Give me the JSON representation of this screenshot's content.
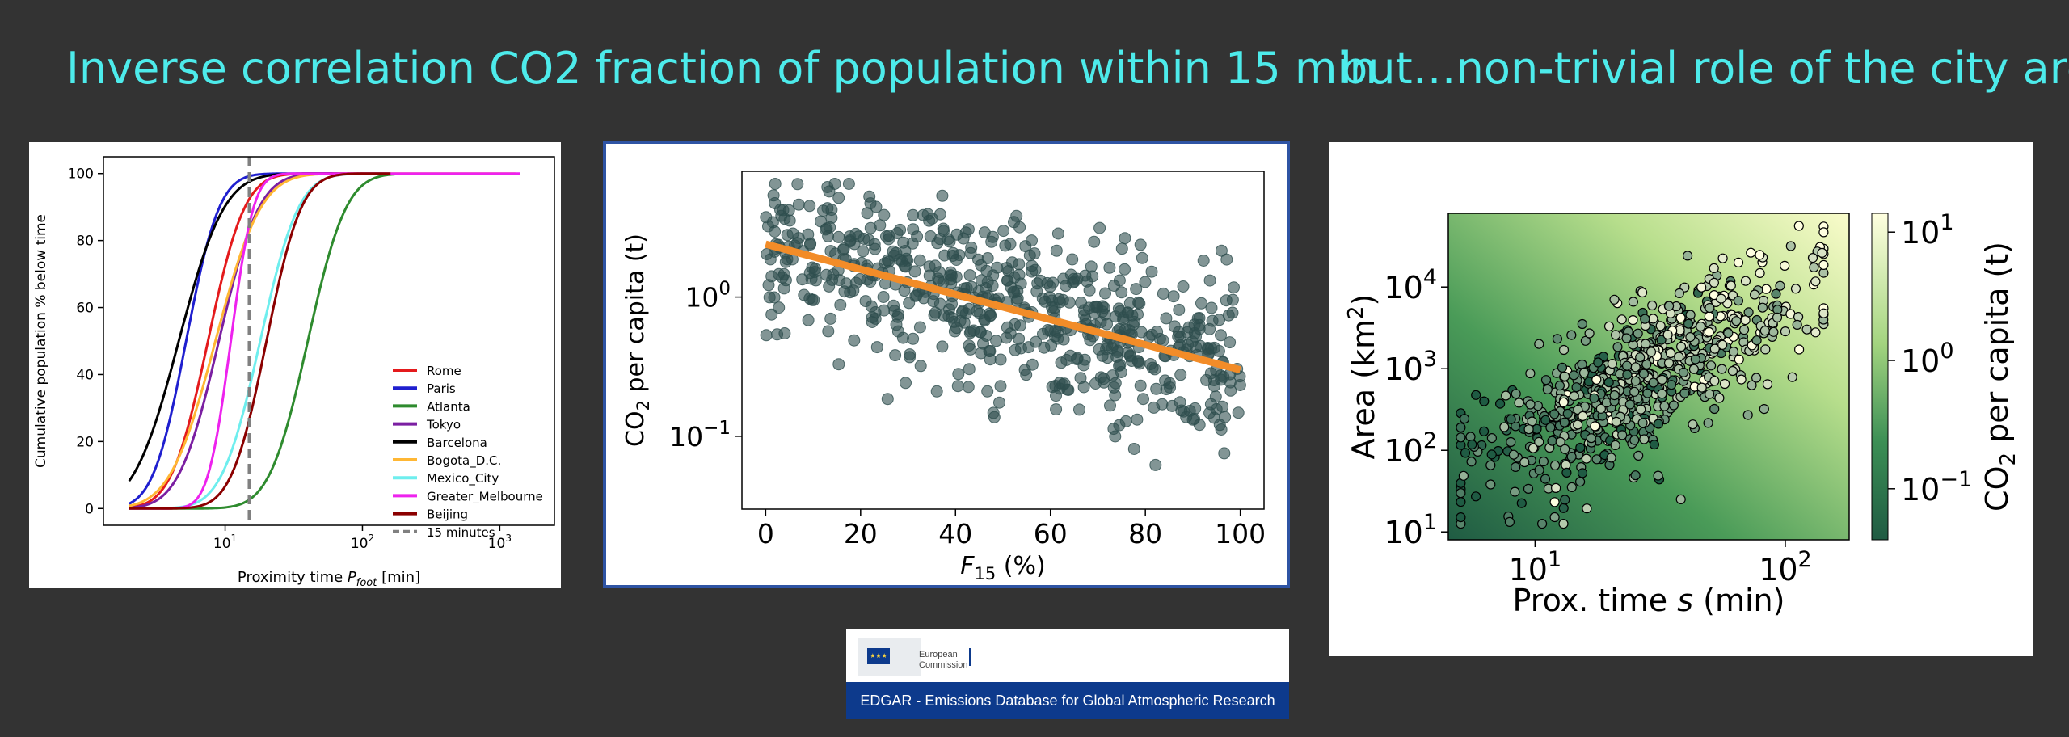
{
  "slide": {
    "title_left": "Inverse correlation CO2 fraction of population within 15 min",
    "title_right": "but…non-trivial role of the city areas!",
    "title_color": "#4DEBEB",
    "background": "#333333"
  },
  "source": {
    "org_line1": "European",
    "org_line2": "Commission",
    "caption": "EDGAR - Emissions Database for Global Atmospheric Research",
    "brand_color": "#0D3A8C"
  },
  "chart_data": [
    {
      "type": "line",
      "xlabel": "Proximity time P_foot [min]",
      "xlabel_parts": {
        "main": "Proximity time ",
        "var": "P",
        "sub": "foot",
        "unit": " [min]"
      },
      "ylabel": "Cumulative population % below time",
      "x_scale": "log",
      "xlim": [
        1.3,
        2500
      ],
      "ylim": [
        -5,
        105
      ],
      "x_ticks": [
        {
          "base": "10",
          "exp": "1",
          "value": 10
        },
        {
          "base": "10",
          "exp": "2",
          "value": 100
        },
        {
          "base": "10",
          "exp": "3",
          "value": 1000
        }
      ],
      "y_ticks": [
        "0",
        "20",
        "40",
        "60",
        "80",
        "100"
      ],
      "grid": false,
      "legend_position": "lower-right",
      "threshold": {
        "name": "15 minutes",
        "x": 15,
        "color": "#808080"
      },
      "series": [
        {
          "name": "Rome",
          "color": "#E41A1C",
          "t50": 7.5,
          "w": 0.21,
          "max_x": 150
        },
        {
          "name": "Paris",
          "color": "#1F1FCF",
          "t50": 5.2,
          "w": 0.19,
          "max_x": 60
        },
        {
          "name": "Atlanta",
          "color": "#2E8B2E",
          "t50": 40,
          "w": 0.22,
          "max_x": 200
        },
        {
          "name": "Tokyo",
          "color": "#7B1FA2",
          "t50": 9,
          "w": 0.23,
          "max_x": 140
        },
        {
          "name": "Barcelona",
          "color": "#000000",
          "t50": 4.6,
          "w": 0.26,
          "max_x": 100
        },
        {
          "name": "Bogota_D.C.",
          "color": "#FFB734",
          "t50": 8.5,
          "w": 0.26,
          "max_x": 1300
        },
        {
          "name": "Mexico_City",
          "color": "#6EEEEE",
          "t50": 18,
          "w": 0.22,
          "max_x": 160
        },
        {
          "name": "Greater_Melbourne",
          "color": "#EE22EE",
          "t50": 11,
          "w": 0.13,
          "max_x": 1400
        },
        {
          "name": "Beijing",
          "color": "#8B0000",
          "t50": 20,
          "w": 0.2,
          "max_x": 160
        }
      ]
    },
    {
      "type": "scatter",
      "xlabel_var": "F",
      "xlabel_sub": "15",
      "xlabel_unit": " (%)",
      "ylabel_pre": "CO",
      "ylabel_sub": "2",
      "ylabel_post": " per capita (t)",
      "y_scale": "log",
      "xlim": [
        -5,
        105
      ],
      "ylim": [
        0.03,
        8
      ],
      "x_ticks": [
        "0",
        "20",
        "40",
        "60",
        "80",
        "100"
      ],
      "y_ticks": [
        {
          "base": "10",
          "exp": "0",
          "value": 1
        },
        {
          "base": "10",
          "exp": "−1",
          "value": 0.1
        }
      ],
      "grid": false,
      "point_color": "#2F4F4F",
      "fit_color": "#F28C28",
      "fit_line": {
        "x": [
          0,
          100
        ],
        "y": [
          2.4,
          0.3
        ]
      },
      "n_points": 640,
      "points_model": "log10(y) = log10(2.4) − 0.009·x ± 0.3 scatter"
    },
    {
      "type": "heatmap",
      "xlabel": "Prox. time s (min)",
      "xlabel_parts": {
        "main": "Prox. time ",
        "var": "s",
        "unit": " (min)"
      },
      "ylabel_pre": "Area (km",
      "ylabel_sup": "2",
      "ylabel_post": ")",
      "x_scale": "log",
      "y_scale": "log",
      "xlim": [
        4.5,
        180
      ],
      "ylim": [
        8,
        80000
      ],
      "x_ticks": [
        {
          "base": "10",
          "exp": "1",
          "value": 10
        },
        {
          "base": "10",
          "exp": "2",
          "value": 100
        }
      ],
      "y_ticks": [
        {
          "base": "10",
          "exp": "1",
          "value": 10
        },
        {
          "base": "10",
          "exp": "2",
          "value": 100
        },
        {
          "base": "10",
          "exp": "3",
          "value": 1000
        },
        {
          "base": "10",
          "exp": "4",
          "value": 10000
        }
      ],
      "colorbar": {
        "label_pre": "CO",
        "label_sub": "2",
        "label_post": " per capita (t)",
        "scale": "log",
        "range": [
          0.04,
          14
        ],
        "ticks": [
          {
            "base": "10",
            "exp": "1",
            "value": 10
          },
          {
            "base": "10",
            "exp": "0",
            "value": 1
          },
          {
            "base": "10",
            "exp": "−1",
            "value": 0.1
          }
        ],
        "colormap": "Greens_r",
        "low_color": "#1F5B43",
        "high_color": "#FFFFE0"
      },
      "n_points": 720,
      "points_model": "log10(area) ≈ 0.6 + 1.6·log10(s) + 0.5 noise; colour ∝ background"
    }
  ]
}
